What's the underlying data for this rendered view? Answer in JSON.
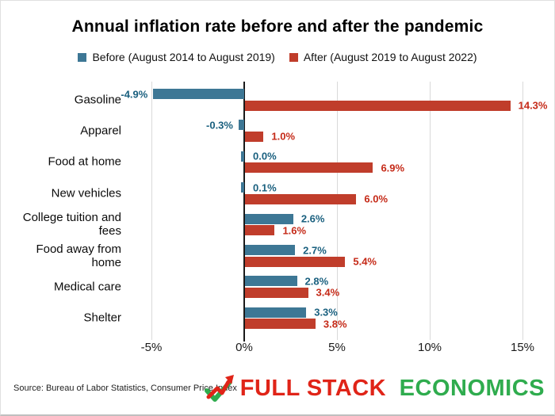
{
  "title": "Annual inflation rate before and after the pandemic",
  "legend": [
    {
      "label": "Before (August 2014 to August 2019)",
      "color": "#3D7795"
    },
    {
      "label": "After (August 2019 to August 2022)",
      "color": "#C03D2B"
    }
  ],
  "chart_data": {
    "type": "bar",
    "orientation": "horizontal",
    "title": "Annual inflation rate before and after the pandemic",
    "categories": [
      "Gasoline",
      "Apparel",
      "Food at home",
      "New vehicles",
      "College tuition and fees",
      "Food away from home",
      "Medical care",
      "Shelter"
    ],
    "category_lines": [
      [
        "Gasoline"
      ],
      [
        "Apparel"
      ],
      [
        "Food at home"
      ],
      [
        "New vehicles"
      ],
      [
        "College tuition and",
        "fees"
      ],
      [
        "Food away from",
        "home"
      ],
      [
        "Medical care"
      ],
      [
        "Shelter"
      ]
    ],
    "series": [
      {
        "name": "Before (August 2014 to August 2019)",
        "color": "#3D7795",
        "label_color": "#1A607F",
        "values": [
          -4.9,
          -0.3,
          0.0,
          0.1,
          2.6,
          2.7,
          2.8,
          3.3
        ]
      },
      {
        "name": "After (August 2019 to August 2022)",
        "color": "#C03D2B",
        "label_color": "#C52A18",
        "values": [
          14.3,
          1.0,
          6.9,
          6.0,
          1.6,
          5.4,
          3.4,
          3.8
        ]
      }
    ],
    "x_ticks": [
      "-5%",
      "0%",
      "5%",
      "10%",
      "15%"
    ],
    "x_tick_values": [
      -5,
      0,
      5,
      10,
      15
    ],
    "xlim": [
      -5,
      15
    ],
    "value_suffix": "%",
    "grid": true,
    "legend_position": "top"
  },
  "footer": {
    "source": "Source: Bureau of Labor Statistics, Consumer Price Index",
    "logo": {
      "part1": "FULL STACK",
      "part2": "ECONOMICS",
      "color1": "#E02418",
      "color2": "#2FAC4E",
      "icon": "check-trend-arrow-icon"
    }
  }
}
